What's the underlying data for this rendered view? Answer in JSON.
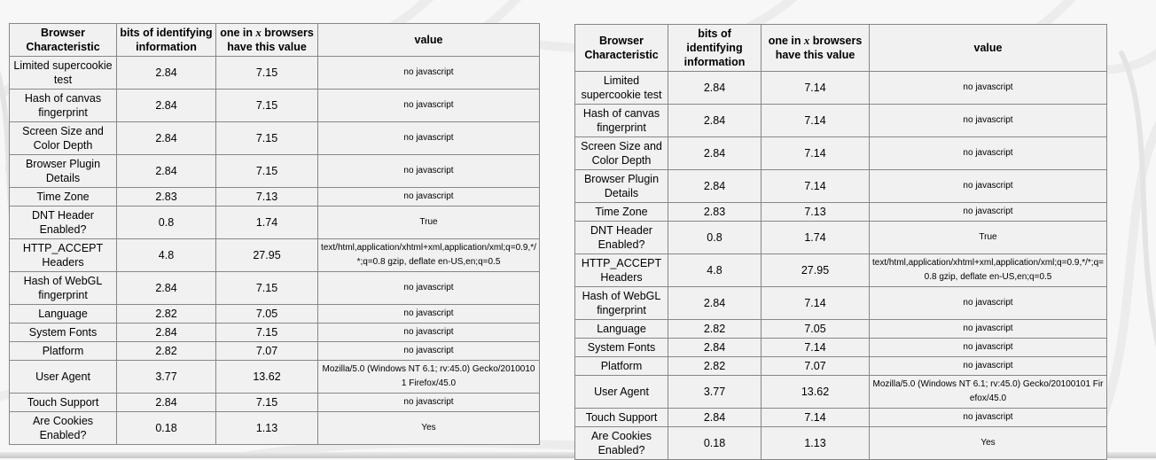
{
  "colors": {
    "page_background": "#f7f7f7",
    "cell_background": "#f1f1f1",
    "table_border": "#878787",
    "pattern_stroke": "#ececec",
    "bottom_edge": "#c7c7c7",
    "text": "#000000"
  },
  "header": {
    "characteristic_line1": "Browser",
    "characteristic_line2": "Characteristic",
    "bits_line1": "bits of identifying",
    "bits_line2": "information",
    "one_in_pre": "one in ",
    "one_in_var": "x",
    "one_in_post": " browsers",
    "one_in_line2": "have this value",
    "value": "value"
  },
  "tables": [
    {
      "name": "fingerprint-results-left",
      "rows": [
        {
          "characteristic": "Limited supercookie test",
          "bits": "2.84",
          "one_in_x": "7.15",
          "value": "no javascript"
        },
        {
          "characteristic": "Hash of canvas fingerprint",
          "bits": "2.84",
          "one_in_x": "7.15",
          "value": "no javascript"
        },
        {
          "characteristic": "Screen Size and Color Depth",
          "bits": "2.84",
          "one_in_x": "7.15",
          "value": "no javascript"
        },
        {
          "characteristic": "Browser Plugin Details",
          "bits": "2.84",
          "one_in_x": "7.15",
          "value": "no javascript"
        },
        {
          "characteristic": "Time Zone",
          "bits": "2.83",
          "one_in_x": "7.13",
          "value": "no javascript"
        },
        {
          "characteristic": "DNT Header Enabled?",
          "bits": "0.8",
          "one_in_x": "1.74",
          "value": "True"
        },
        {
          "characteristic": "HTTP_ACCEPT Headers",
          "bits": "4.8",
          "one_in_x": "27.95",
          "value": "text/html,application/xhtml+xml,application/xml;q=0.9,*/*;q=0.8 gzip, deflate en-US,en;q=0.5"
        },
        {
          "characteristic": "Hash of WebGL fingerprint",
          "bits": "2.84",
          "one_in_x": "7.15",
          "value": "no javascript"
        },
        {
          "characteristic": "Language",
          "bits": "2.82",
          "one_in_x": "7.05",
          "value": "no javascript"
        },
        {
          "characteristic": "System Fonts",
          "bits": "2.84",
          "one_in_x": "7.15",
          "value": "no javascript"
        },
        {
          "characteristic": "Platform",
          "bits": "2.82",
          "one_in_x": "7.07",
          "value": "no javascript"
        },
        {
          "characteristic": "User Agent",
          "bits": "3.77",
          "one_in_x": "13.62",
          "value": "Mozilla/5.0 (Windows NT 6.1; rv:45.0) Gecko/20100101 Firefox/45.0"
        },
        {
          "characteristic": "Touch Support",
          "bits": "2.84",
          "one_in_x": "7.15",
          "value": "no javascript"
        },
        {
          "characteristic": "Are Cookies Enabled?",
          "bits": "0.18",
          "one_in_x": "1.13",
          "value": "Yes"
        }
      ]
    },
    {
      "name": "fingerprint-results-right",
      "rows": [
        {
          "characteristic": "Limited supercookie test",
          "bits": "2.84",
          "one_in_x": "7.14",
          "value": "no javascript"
        },
        {
          "characteristic": "Hash of canvas fingerprint",
          "bits": "2.84",
          "one_in_x": "7.14",
          "value": "no javascript"
        },
        {
          "characteristic": "Screen Size and Color Depth",
          "bits": "2.84",
          "one_in_x": "7.14",
          "value": "no javascript"
        },
        {
          "characteristic": "Browser Plugin Details",
          "bits": "2.84",
          "one_in_x": "7.14",
          "value": "no javascript"
        },
        {
          "characteristic": "Time Zone",
          "bits": "2.83",
          "one_in_x": "7.13",
          "value": "no javascript"
        },
        {
          "characteristic": "DNT Header Enabled?",
          "bits": "0.8",
          "one_in_x": "1.74",
          "value": "True"
        },
        {
          "characteristic": "HTTP_ACCEPT Headers",
          "bits": "4.8",
          "one_in_x": "27.95",
          "value": "text/html,application/xhtml+xml,application/xml;q=0.9,*/*;q=0.8 gzip, deflate en-US,en;q=0.5"
        },
        {
          "characteristic": "Hash of WebGL fingerprint",
          "bits": "2.84",
          "one_in_x": "7.14",
          "value": "no javascript"
        },
        {
          "characteristic": "Language",
          "bits": "2.82",
          "one_in_x": "7.05",
          "value": "no javascript"
        },
        {
          "characteristic": "System Fonts",
          "bits": "2.84",
          "one_in_x": "7.14",
          "value": "no javascript"
        },
        {
          "characteristic": "Platform",
          "bits": "2.82",
          "one_in_x": "7.07",
          "value": "no javascript"
        },
        {
          "characteristic": "User Agent",
          "bits": "3.77",
          "one_in_x": "13.62",
          "value": "Mozilla/5.0 (Windows NT 6.1; rv:45.0) Gecko/20100101 Firefox/45.0"
        },
        {
          "characteristic": "Touch Support",
          "bits": "2.84",
          "one_in_x": "7.14",
          "value": "no javascript"
        },
        {
          "characteristic": "Are Cookies Enabled?",
          "bits": "0.18",
          "one_in_x": "1.13",
          "value": "Yes"
        }
      ]
    }
  ]
}
